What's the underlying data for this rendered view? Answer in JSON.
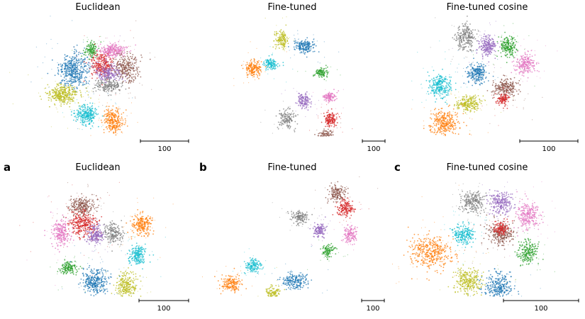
{
  "colors": {
    "blue": "#1f77b4",
    "orange": "#ff7f0e",
    "green": "#2ca02c",
    "red": "#d62728",
    "purple": "#9467bd",
    "brown": "#8c564b",
    "pink": "#e377c2",
    "gray": "#7f7f7f",
    "olive": "#bcbd22",
    "cyan": "#17becf"
  },
  "chart_data": [
    {
      "type": "scatter",
      "title": "Euclidean",
      "panel_label": "",
      "scale_bar_label": "100",
      "clusters": [
        {
          "color": "blue",
          "x": -22,
          "y": 12,
          "spread_x": 9,
          "spread_y": 10,
          "points": 420
        },
        {
          "color": "green",
          "x": -6,
          "y": 30,
          "spread_x": 4,
          "spread_y": 5,
          "points": 120
        },
        {
          "color": "red",
          "x": 4,
          "y": 18,
          "spread_x": 7,
          "spread_y": 8,
          "points": 260
        },
        {
          "color": "pink",
          "x": 14,
          "y": 30,
          "spread_x": 8,
          "spread_y": 4,
          "points": 220
        },
        {
          "color": "brown",
          "x": 26,
          "y": 14,
          "spread_x": 8,
          "spread_y": 8,
          "points": 260
        },
        {
          "color": "purple",
          "x": 10,
          "y": 10,
          "spread_x": 8,
          "spread_y": 5,
          "points": 200
        },
        {
          "color": "gray",
          "x": 10,
          "y": -2,
          "spread_x": 8,
          "spread_y": 4,
          "points": 180
        },
        {
          "color": "olive",
          "x": -32,
          "y": -10,
          "spread_x": 9,
          "spread_y": 6,
          "points": 330
        },
        {
          "color": "cyan",
          "x": -10,
          "y": -28,
          "spread_x": 7,
          "spread_y": 6,
          "points": 260
        },
        {
          "color": "orange",
          "x": 14,
          "y": -34,
          "spread_x": 6,
          "spread_y": 7,
          "points": 260
        }
      ]
    },
    {
      "type": "scatter",
      "title": "Fine-tuned",
      "panel_label": "",
      "scale_bar_label": "100",
      "clusters": [
        {
          "color": "olive",
          "x": -10,
          "y": 40,
          "spread_x": 4,
          "spread_y": 5,
          "points": 140
        },
        {
          "color": "blue",
          "x": 10,
          "y": 34,
          "spread_x": 6,
          "spread_y": 4,
          "points": 180
        },
        {
          "color": "orange",
          "x": -36,
          "y": 14,
          "spread_x": 5,
          "spread_y": 5,
          "points": 170
        },
        {
          "color": "cyan",
          "x": -20,
          "y": 18,
          "spread_x": 4,
          "spread_y": 3,
          "points": 120
        },
        {
          "color": "green",
          "x": 26,
          "y": 10,
          "spread_x": 4,
          "spread_y": 3,
          "points": 100
        },
        {
          "color": "purple",
          "x": 10,
          "y": -16,
          "spread_x": 4,
          "spread_y": 4,
          "points": 120
        },
        {
          "color": "pink",
          "x": 34,
          "y": -12,
          "spread_x": 4,
          "spread_y": 3,
          "points": 110
        },
        {
          "color": "gray",
          "x": -6,
          "y": -32,
          "spread_x": 5,
          "spread_y": 6,
          "points": 140
        },
        {
          "color": "red",
          "x": 34,
          "y": -32,
          "spread_x": 4,
          "spread_y": 5,
          "points": 140
        },
        {
          "color": "brown",
          "x": 30,
          "y": -48,
          "spread_x": 5,
          "spread_y": 4,
          "points": 140
        }
      ]
    },
    {
      "type": "scatter",
      "title": "Fine-tuned cosine",
      "panel_label": "",
      "scale_bar_label": "100",
      "clusters": [
        {
          "color": "gray",
          "x": -20,
          "y": 42,
          "spread_x": 6,
          "spread_y": 8,
          "points": 230
        },
        {
          "color": "purple",
          "x": 0,
          "y": 34,
          "spread_x": 5,
          "spread_y": 6,
          "points": 200
        },
        {
          "color": "green",
          "x": 18,
          "y": 34,
          "spread_x": 5,
          "spread_y": 6,
          "points": 190
        },
        {
          "color": "pink",
          "x": 34,
          "y": 18,
          "spread_x": 6,
          "spread_y": 6,
          "points": 210
        },
        {
          "color": "blue",
          "x": -10,
          "y": 10,
          "spread_x": 6,
          "spread_y": 6,
          "points": 220
        },
        {
          "color": "brown",
          "x": 16,
          "y": -4,
          "spread_x": 7,
          "spread_y": 6,
          "points": 220
        },
        {
          "color": "red",
          "x": 14,
          "y": -14,
          "spread_x": 4,
          "spread_y": 4,
          "points": 100
        },
        {
          "color": "cyan",
          "x": -44,
          "y": -2,
          "spread_x": 7,
          "spread_y": 7,
          "points": 250
        },
        {
          "color": "olive",
          "x": -18,
          "y": -18,
          "spread_x": 7,
          "spread_y": 5,
          "points": 210
        },
        {
          "color": "orange",
          "x": -40,
          "y": -36,
          "spread_x": 9,
          "spread_y": 7,
          "points": 300
        }
      ]
    },
    {
      "type": "scatter",
      "title": "Euclidean",
      "panel_label": "a",
      "scale_bar_label": "100",
      "clusters": [
        {
          "color": "brown",
          "x": -14,
          "y": 34,
          "spread_x": 8,
          "spread_y": 6,
          "points": 230
        },
        {
          "color": "red",
          "x": -14,
          "y": 18,
          "spread_x": 9,
          "spread_y": 8,
          "points": 300
        },
        {
          "color": "pink",
          "x": -34,
          "y": 10,
          "spread_x": 6,
          "spread_y": 8,
          "points": 220
        },
        {
          "color": "purple",
          "x": -2,
          "y": 8,
          "spread_x": 5,
          "spread_y": 6,
          "points": 180
        },
        {
          "color": "gray",
          "x": 14,
          "y": 10,
          "spread_x": 6,
          "spread_y": 6,
          "points": 180
        },
        {
          "color": "orange",
          "x": 40,
          "y": 18,
          "spread_x": 6,
          "spread_y": 7,
          "points": 220
        },
        {
          "color": "cyan",
          "x": 36,
          "y": -10,
          "spread_x": 5,
          "spread_y": 6,
          "points": 190
        },
        {
          "color": "green",
          "x": -26,
          "y": -22,
          "spread_x": 5,
          "spread_y": 4,
          "points": 140
        },
        {
          "color": "blue",
          "x": -2,
          "y": -34,
          "spread_x": 8,
          "spread_y": 8,
          "points": 300
        },
        {
          "color": "olive",
          "x": 26,
          "y": -38,
          "spread_x": 6,
          "spread_y": 8,
          "points": 240
        }
      ]
    },
    {
      "type": "scatter",
      "title": "Fine-tuned",
      "panel_label": "b",
      "scale_bar_label": "100",
      "clusters": [
        {
          "color": "brown",
          "x": 40,
          "y": 46,
          "spread_x": 5,
          "spread_y": 5,
          "points": 150
        },
        {
          "color": "red",
          "x": 48,
          "y": 32,
          "spread_x": 5,
          "spread_y": 5,
          "points": 160
        },
        {
          "color": "gray",
          "x": 6,
          "y": 24,
          "spread_x": 5,
          "spread_y": 4,
          "points": 130
        },
        {
          "color": "purple",
          "x": 24,
          "y": 12,
          "spread_x": 4,
          "spread_y": 4,
          "points": 120
        },
        {
          "color": "pink",
          "x": 52,
          "y": 8,
          "spread_x": 4,
          "spread_y": 5,
          "points": 130
        },
        {
          "color": "green",
          "x": 32,
          "y": -6,
          "spread_x": 4,
          "spread_y": 4,
          "points": 100
        },
        {
          "color": "cyan",
          "x": -36,
          "y": -20,
          "spread_x": 5,
          "spread_y": 4,
          "points": 140
        },
        {
          "color": "orange",
          "x": -56,
          "y": -36,
          "spread_x": 6,
          "spread_y": 5,
          "points": 170
        },
        {
          "color": "blue",
          "x": 2,
          "y": -34,
          "spread_x": 7,
          "spread_y": 5,
          "points": 190
        },
        {
          "color": "olive",
          "x": -18,
          "y": -46,
          "spread_x": 5,
          "spread_y": 5,
          "points": 140
        }
      ]
    },
    {
      "type": "scatter",
      "title": "Fine-tuned cosine",
      "panel_label": "c",
      "scale_bar_label": "100",
      "clusters": [
        {
          "color": "gray",
          "x": -14,
          "y": 38,
          "spread_x": 7,
          "spread_y": 7,
          "points": 230
        },
        {
          "color": "purple",
          "x": 12,
          "y": 38,
          "spread_x": 7,
          "spread_y": 7,
          "points": 220
        },
        {
          "color": "pink",
          "x": 36,
          "y": 26,
          "spread_x": 7,
          "spread_y": 8,
          "points": 240
        },
        {
          "color": "green",
          "x": 36,
          "y": -8,
          "spread_x": 6,
          "spread_y": 7,
          "points": 200
        },
        {
          "color": "brown",
          "x": 12,
          "y": 10,
          "spread_x": 8,
          "spread_y": 7,
          "points": 250
        },
        {
          "color": "red",
          "x": 12,
          "y": 14,
          "spread_x": 5,
          "spread_y": 4,
          "points": 120
        },
        {
          "color": "cyan",
          "x": -22,
          "y": 8,
          "spread_x": 7,
          "spread_y": 6,
          "points": 210
        },
        {
          "color": "orange",
          "x": -52,
          "y": -8,
          "spread_x": 12,
          "spread_y": 10,
          "points": 380
        },
        {
          "color": "olive",
          "x": -18,
          "y": -34,
          "spread_x": 8,
          "spread_y": 8,
          "points": 270
        },
        {
          "color": "blue",
          "x": 10,
          "y": -40,
          "spread_x": 9,
          "spread_y": 9,
          "points": 300
        }
      ]
    }
  ]
}
